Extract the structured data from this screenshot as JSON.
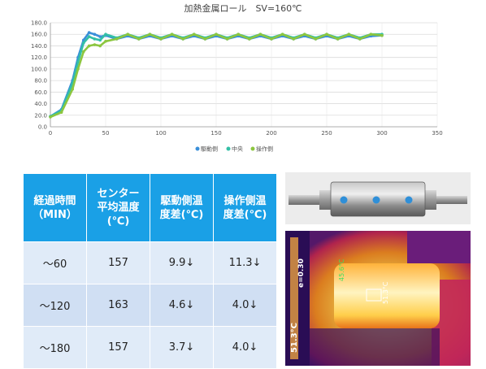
{
  "chart_data": {
    "type": "line",
    "title": "加熱金属ロール　SV=160℃",
    "xlim": [
      0,
      350
    ],
    "ylim": [
      0,
      180
    ],
    "x_ticks": [
      0,
      50,
      100,
      150,
      200,
      250,
      300,
      350
    ],
    "y_ticks": [
      "0.0",
      "20.0",
      "40.0",
      "60.0",
      "80.0",
      "100.0",
      "120.0",
      "140.0",
      "160.0",
      "180.0"
    ],
    "grid": true,
    "legend_position": "bottom",
    "series": [
      {
        "name": "駆動側",
        "color": "#3a8fd9",
        "x": [
          0,
          10,
          20,
          25,
          30,
          35,
          40,
          45,
          50,
          60,
          70,
          80,
          90,
          100,
          110,
          120,
          130,
          140,
          150,
          160,
          170,
          180,
          190,
          200,
          210,
          220,
          230,
          240,
          250,
          260,
          270,
          280,
          290,
          300
        ],
        "y": [
          18,
          30,
          80,
          120,
          150,
          163,
          160,
          156,
          158,
          152,
          157,
          152,
          157,
          152,
          157,
          152,
          157,
          152,
          157,
          152,
          157,
          152,
          157,
          152,
          157,
          152,
          157,
          152,
          157,
          152,
          157,
          152,
          157,
          158
        ]
      },
      {
        "name": "中央",
        "color": "#33bfa6",
        "x": [
          0,
          10,
          20,
          25,
          30,
          35,
          40,
          45,
          50,
          60,
          70,
          80,
          90,
          100,
          110,
          120,
          130,
          140,
          150,
          160,
          170,
          180,
          190,
          200,
          210,
          220,
          230,
          240,
          250,
          260,
          270,
          280,
          290,
          300
        ],
        "y": [
          18,
          28,
          75,
          112,
          145,
          156,
          152,
          150,
          160,
          154,
          160,
          154,
          160,
          154,
          160,
          154,
          160,
          154,
          160,
          154,
          160,
          154,
          160,
          154,
          160,
          154,
          160,
          154,
          160,
          154,
          160,
          154,
          160,
          160
        ]
      },
      {
        "name": "操作側",
        "color": "#8cc63f",
        "x": [
          0,
          10,
          20,
          25,
          30,
          35,
          40,
          45,
          50,
          60,
          70,
          80,
          90,
          100,
          110,
          120,
          130,
          140,
          150,
          160,
          170,
          180,
          190,
          200,
          210,
          220,
          230,
          240,
          250,
          260,
          270,
          280,
          290,
          300
        ],
        "y": [
          17,
          25,
          65,
          100,
          130,
          140,
          142,
          140,
          148,
          152,
          160,
          152,
          160,
          152,
          160,
          152,
          160,
          152,
          160,
          152,
          160,
          152,
          160,
          152,
          160,
          152,
          160,
          152,
          160,
          152,
          160,
          152,
          160,
          158
        ]
      }
    ]
  },
  "table": {
    "headers": [
      "経過時間\n（MIN）",
      "センター\n平均温度\n(℃)",
      "駆動側温\n度差(℃)",
      "操作側温\n度差(℃)"
    ],
    "rows": [
      [
        "～60",
        "157",
        "9.9↓",
        "11.3↓"
      ],
      [
        "～120",
        "163",
        "4.6↓",
        "4.0↓"
      ],
      [
        "～180",
        "157",
        "3.7↓",
        "4.0↓"
      ]
    ]
  },
  "thermal": {
    "left_reading": "51.3°C",
    "mid_reading": "e=0.30",
    "green_reading": "45.6°C",
    "roll_reading": "51.3°C"
  },
  "colors": {
    "header_blue": "#1aa0e6",
    "cell_light": "#e0ebf8",
    "roll_dot": "#2f8fd8"
  }
}
